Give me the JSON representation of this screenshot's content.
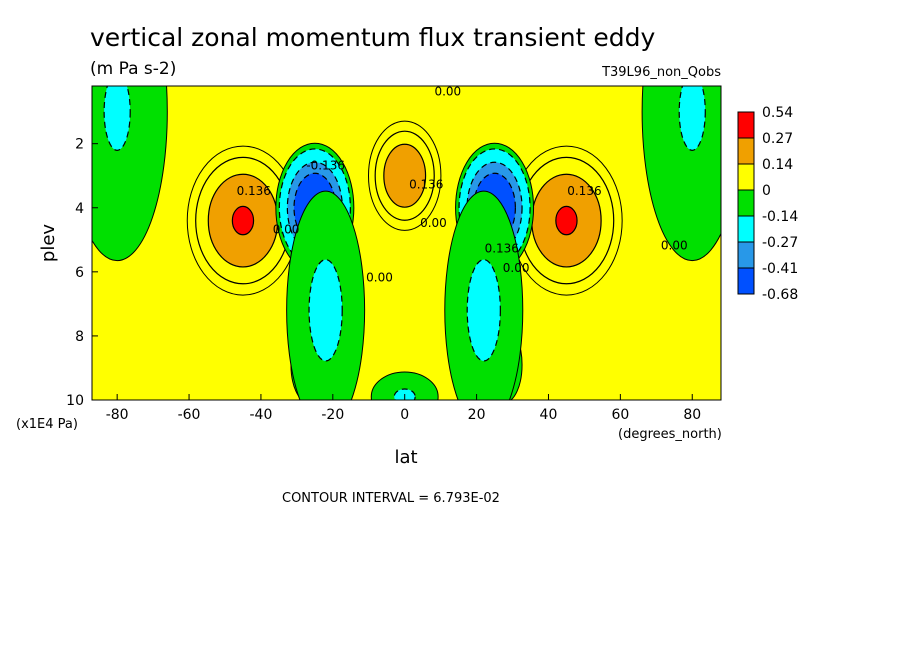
{
  "chart_data": {
    "type": "heatmap",
    "title": "vertical zonal momentum flux transient eddy",
    "units": "(m Pa s-2)",
    "dataset": "T39L96_non_Qobs",
    "xlabel": "lat",
    "x_units": "(degrees_north)",
    "ylabel": "plev",
    "y_units": "(x1E4 Pa)",
    "xlim": [
      -87,
      88
    ],
    "ylim": [
      10,
      0.2
    ],
    "x_ticks": [
      -80,
      -60,
      -40,
      -20,
      0,
      20,
      40,
      60,
      80
    ],
    "x_tick_labels": [
      "-80",
      "-60",
      "-40",
      "-20",
      "0",
      "20",
      "40",
      "60",
      "80"
    ],
    "y_ticks": [
      2,
      4,
      6,
      8,
      10
    ],
    "y_tick_labels": [
      "2",
      "4",
      "6",
      "8",
      "10"
    ],
    "contour_interval_text": "CONTOUR INTERVAL = 6.793E-02",
    "contour_levels": [
      -0.68,
      -0.41,
      -0.27,
      -0.14,
      0,
      0.14,
      0.27,
      0.54
    ],
    "colorbar": {
      "labels": [
        "0.54",
        "0.27",
        "0.14",
        "0",
        "-0.14",
        "-0.27",
        "-0.41",
        "-0.68"
      ],
      "colors": [
        "#ff0000",
        "#f0a000",
        "#ffff00",
        "#00e000",
        "#00ffff",
        "#2898e8",
        "#0050ff"
      ]
    },
    "field_features": [
      {
        "lat": -45,
        "plev": 4.4,
        "amplitude": 0.58,
        "width_lat": 10,
        "width_plev": 1.5
      },
      {
        "lat": 45,
        "plev": 4.4,
        "amplitude": 0.58,
        "width_lat": 10,
        "width_plev": 1.5
      },
      {
        "lat": 0,
        "plev": 3.0,
        "amplitude": 0.52,
        "width_lat": 6.5,
        "width_plev": 1.1
      },
      {
        "lat": -25,
        "plev": 4.0,
        "amplitude": -0.72,
        "width_lat": 7,
        "width_plev": 1.3
      },
      {
        "lat": 25,
        "plev": 4.0,
        "amplitude": -0.72,
        "width_lat": 7,
        "width_plev": 1.3
      },
      {
        "lat": -27,
        "plev": 8.9,
        "amplitude": -0.28,
        "width_lat": 3,
        "width_plev": 0.75
      },
      {
        "lat": 28,
        "plev": 8.9,
        "amplitude": -0.28,
        "width_lat": 3,
        "width_plev": 0.75
      },
      {
        "lat": -22,
        "plev": 7.2,
        "amplitude": -0.2,
        "width_lat": 7,
        "width_plev": 2.4
      },
      {
        "lat": 22,
        "plev": 7.2,
        "amplitude": -0.2,
        "width_lat": 7,
        "width_plev": 2.4
      },
      {
        "lat": -80,
        "plev": 1.0,
        "amplitude": -0.16,
        "width_lat": 9,
        "width_plev": 3.0
      },
      {
        "lat": 80,
        "plev": 1.0,
        "amplitude": -0.16,
        "width_lat": 9,
        "width_plev": 3.0
      },
      {
        "lat": 0,
        "plev": 9.9,
        "amplitude": -0.17,
        "width_lat": 6,
        "width_plev": 0.5
      }
    ],
    "contour_labels": [
      {
        "text": "0.00",
        "lat": 12,
        "plev": 0.5
      },
      {
        "text": "0.136",
        "lat": -42,
        "plev": 3.6
      },
      {
        "text": "0.00",
        "lat": -33,
        "plev": 4.8
      },
      {
        "text": "-0.136",
        "lat": -22,
        "plev": 2.8
      },
      {
        "text": "0.136",
        "lat": 6,
        "plev": 3.4
      },
      {
        "text": "0.00",
        "lat": 8,
        "plev": 4.6
      },
      {
        "text": "0.00",
        "lat": -7,
        "plev": 6.3
      },
      {
        "text": "0.136",
        "lat": 27,
        "plev": 5.4
      },
      {
        "text": "0.00",
        "lat": 31,
        "plev": 6.0
      },
      {
        "text": "0.136",
        "lat": 50,
        "plev": 3.6
      },
      {
        "text": "0.00",
        "lat": 75,
        "plev": 5.3
      }
    ]
  }
}
